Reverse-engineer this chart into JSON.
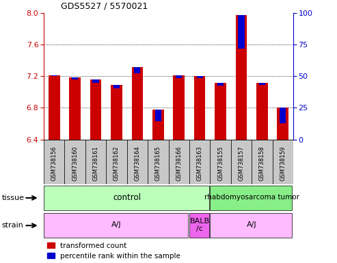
{
  "title": "GDS5527 / 5570021",
  "samples": [
    "GSM738156",
    "GSM738160",
    "GSM738161",
    "GSM738162",
    "GSM738164",
    "GSM738165",
    "GSM738166",
    "GSM738163",
    "GSM738155",
    "GSM738157",
    "GSM738158",
    "GSM738159"
  ],
  "red_values": [
    7.21,
    7.19,
    7.16,
    7.09,
    7.32,
    6.78,
    7.21,
    7.2,
    7.12,
    7.98,
    7.12,
    6.8
  ],
  "blue_values": [
    7.2,
    7.16,
    7.12,
    7.05,
    7.24,
    6.63,
    7.18,
    7.18,
    7.08,
    7.55,
    7.09,
    6.6
  ],
  "ylim_left": [
    6.4,
    8.0
  ],
  "ylim_right": [
    0,
    100
  ],
  "yticks_left": [
    6.4,
    6.8,
    7.2,
    7.6,
    8.0
  ],
  "yticks_right": [
    0,
    25,
    50,
    75,
    100
  ],
  "bar_color_red": "#cc0000",
  "bar_color_blue": "#0000cc",
  "bar_width": 0.55,
  "base": 6.4,
  "legend_red": "transformed count",
  "legend_blue": "percentile rank within the sample",
  "tick_color_left": "#cc0000",
  "tick_color_right": "#0000cc",
  "tissue_control_color": "#bbffbb",
  "tissue_tumor_color": "#88ee88",
  "strain_aj_color": "#ffbbff",
  "strain_balb_color": "#ee66ee",
  "label_row_bg": "#cccccc"
}
